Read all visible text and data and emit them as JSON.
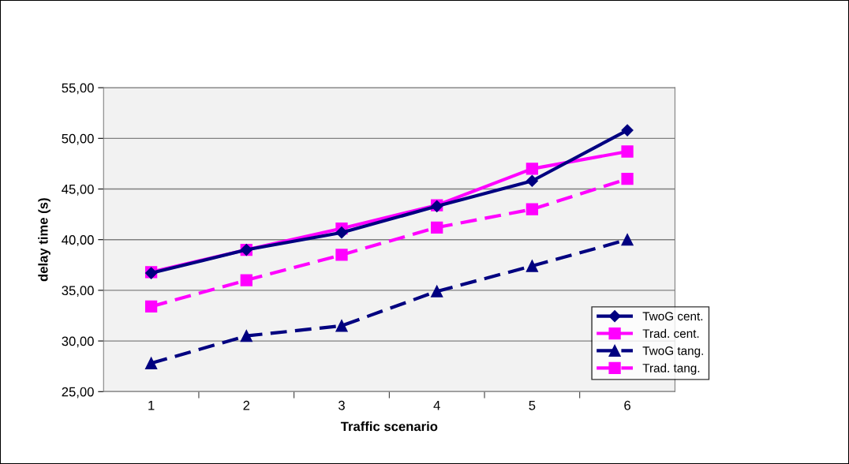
{
  "chart_data": {
    "type": "line",
    "xlabel": "Traffic scenario",
    "ylabel": "delay time (s)",
    "categories": [
      "1",
      "2",
      "3",
      "4",
      "5",
      "6"
    ],
    "series": [
      {
        "name": "TwoG cent.",
        "color": "#000080",
        "marker": "diamond",
        "line_style": "solid",
        "values": [
          36.7,
          39.0,
          40.7,
          43.3,
          45.8,
          50.8
        ]
      },
      {
        "name": "Trad. cent.",
        "color": "#ff00ff",
        "marker": "square",
        "line_style": "solid",
        "values": [
          36.8,
          39.0,
          41.1,
          43.4,
          47.0,
          48.7
        ]
      },
      {
        "name": "TwoG tang.",
        "color": "#000080",
        "marker": "triangle",
        "line_style": "dashed",
        "values": [
          27.8,
          30.5,
          31.5,
          34.9,
          37.4,
          40.0
        ]
      },
      {
        "name": "Trad. tang.",
        "color": "#ff00ff",
        "marker": "square",
        "line_style": "dashed",
        "values": [
          33.4,
          36.0,
          38.5,
          41.2,
          43.0,
          46.0
        ]
      }
    ],
    "ylim": [
      25,
      55
    ],
    "yticks": [
      {
        "value": 25,
        "label": "25,00"
      },
      {
        "value": 30,
        "label": "30,00"
      },
      {
        "value": 35,
        "label": "35,00"
      },
      {
        "value": 40,
        "label": "40,00"
      },
      {
        "value": 45,
        "label": "45,00"
      },
      {
        "value": 50,
        "label": "50,00"
      },
      {
        "value": 55,
        "label": "55,00"
      }
    ],
    "grid": "y",
    "legend": "bottom right"
  }
}
